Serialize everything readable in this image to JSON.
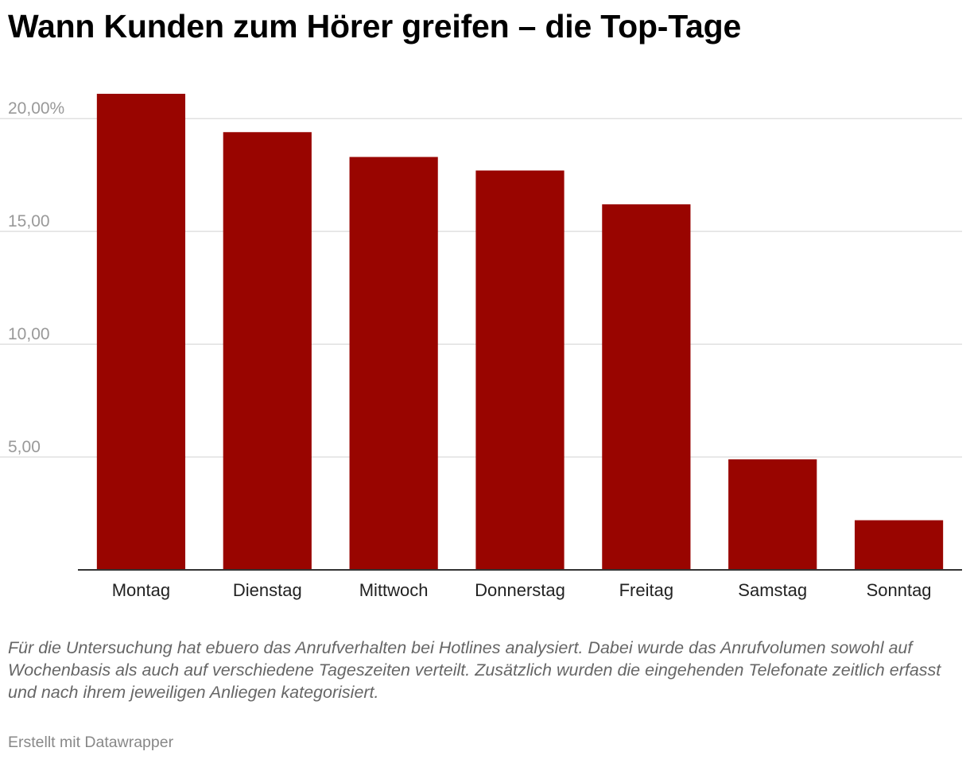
{
  "header": {
    "title": "Wann Kunden zum Hörer greifen – die Top-Tage"
  },
  "chart_data": {
    "type": "bar",
    "title": "Wann Kunden zum Hörer greifen – die Top-Tage",
    "xlabel": "",
    "ylabel": "",
    "categories": [
      "Montag",
      "Dienstag",
      "Mittwoch",
      "Donnerstag",
      "Freitag",
      "Samstag",
      "Sonntag"
    ],
    "values": [
      21.1,
      19.4,
      18.3,
      17.7,
      16.2,
      4.9,
      2.2
    ],
    "ylim": [
      0,
      21.1
    ],
    "yticks": [
      5,
      10,
      15,
      20
    ],
    "ytick_labels": [
      "5,00",
      "10,00",
      "15,00",
      "20,00%"
    ],
    "grid": true,
    "legend": "none",
    "bar_color": "#990500",
    "grid_color": "#e0e0e0",
    "axis_color": "#333333"
  },
  "notes": "Für die Untersuchung hat ebuero das Anrufverhalten bei Hotlines analysiert. Dabei wurde das Anrufvolumen sowohl auf Wochenbasis als auch auf verschiedene Tageszeiten verteilt. Zusätzlich wurden die eingehenden Telefonate zeitlich erfasst und nach ihrem jeweiligen Anliegen kategorisiert.",
  "footer": {
    "credit": "Erstellt mit Datawrapper"
  }
}
